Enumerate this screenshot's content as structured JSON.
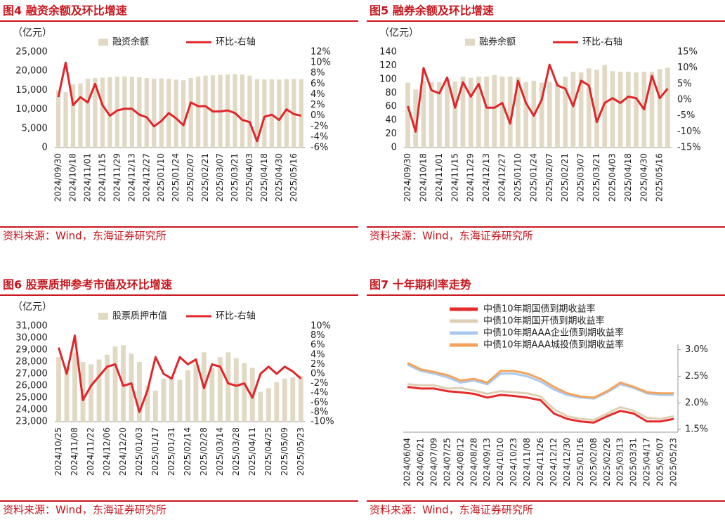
{
  "chart_data": [
    {
      "type": "bar_line",
      "title": "图4  融资余额及环比增速",
      "y_label": "（亿元）",
      "source": "资料来源：Wind，东海证券研究所",
      "categories": [
        "2024/09/30",
        null,
        "2024/10/18",
        null,
        "2024/11/01",
        null,
        "2024/11/15",
        null,
        "2024/11/29",
        null,
        "2024/12/13",
        null,
        "2024/12/27",
        null,
        "2025/01/10",
        null,
        "2025/01/24",
        null,
        "2025/02/07",
        null,
        "2025/02/21",
        null,
        "2025/03/07",
        null,
        "2025/03/21",
        null,
        "2025/04/03",
        null,
        "2025/04/18",
        null,
        "2025/04/30",
        null,
        "2025/05/16",
        null
      ],
      "series": [
        {
          "name": "融资余额",
          "type": "bar",
          "color": "#e2d9c4",
          "values": [
            15000,
            14500,
            16500,
            16800,
            18000,
            18200,
            18300,
            18400,
            18500,
            18600,
            18500,
            18400,
            18200,
            18000,
            18100,
            18000,
            17800,
            17600,
            18200,
            18600,
            18800,
            18900,
            19000,
            19100,
            19200,
            19100,
            18800,
            17900,
            17800,
            17900,
            17800,
            17900,
            17900,
            17900
          ]
        },
        {
          "name": "环比-右轴",
          "type": "line",
          "axis": "y2",
          "color": "#e0262a",
          "values": [
            3.5,
            10,
            2,
            3.5,
            2.5,
            6,
            2,
            0,
            1,
            1.3,
            1.3,
            0.2,
            -0.3,
            -2,
            -1,
            0.5,
            -0.5,
            -1.8,
            2.5,
            1.8,
            1.8,
            0.8,
            0.8,
            1,
            0.5,
            -0.8,
            -1.2,
            -4.8,
            -0.2,
            0.2,
            -0.8,
            1.2,
            0.3,
            0
          ]
        }
      ],
      "ylim": [
        0,
        25000
      ],
      "yticks": [
        0,
        {
          "value": 5000,
          "label": "5,000"
        },
        {
          "value": 10000,
          "label": "10,000"
        },
        {
          "value": 15000,
          "label": "15,000"
        },
        {
          "value": 20000,
          "label": "20,000"
        },
        {
          "value": 25000,
          "label": "25,000"
        }
      ],
      "y2lim": [
        -6,
        12
      ],
      "y2ticks": [
        {
          "value": -6,
          "label": "-6%"
        },
        {
          "value": -4,
          "label": "-4%"
        },
        {
          "value": -2,
          "label": "-2%"
        },
        {
          "value": 0,
          "label": "0%"
        },
        {
          "value": 2,
          "label": "2%"
        },
        {
          "value": 4,
          "label": "4%"
        },
        {
          "value": 6,
          "label": "6%"
        },
        {
          "value": 8,
          "label": "8%"
        },
        {
          "value": 10,
          "label": "10%"
        },
        {
          "value": 12,
          "label": "12%"
        }
      ]
    },
    {
      "type": "bar_line",
      "title": "图5  融券余额及环比增速",
      "y_label": "（亿元）",
      "source": "资料来源：Wind，东海证券研究所",
      "categories": [
        "2024/09/30",
        null,
        "2024/10/18",
        null,
        "2024/11/01",
        null,
        "2024/11/15",
        null,
        "2024/11/29",
        null,
        "2024/12/13",
        null,
        "2024/12/27",
        null,
        "2025/01/10",
        null,
        "2025/01/24",
        null,
        "2025/02/07",
        null,
        "2025/02/21",
        null,
        "2025/03/07",
        null,
        "2025/03/21",
        null,
        "2025/04/03",
        null,
        "2025/04/18",
        null,
        "2025/04/30",
        null,
        "2025/05/16",
        null
      ],
      "series": [
        {
          "name": "融券余额",
          "type": "bar",
          "color": "#e2d9c4",
          "values": [
            95,
            85,
            98,
            96,
            96,
            100,
            97,
            104,
            102,
            104,
            104,
            106,
            104,
            104,
            103,
            96,
            98,
            95,
            96,
            95,
            104,
            111,
            110,
            116,
            114,
            121,
            112,
            111,
            111,
            110,
            111,
            111,
            115,
            117
          ]
        },
        {
          "name": "环比-右轴",
          "type": "line",
          "axis": "y2",
          "color": "#e0262a",
          "values": [
            -2,
            -10,
            10,
            3,
            2,
            7,
            -2.5,
            5.5,
            1,
            5,
            -2.5,
            -2.5,
            -1,
            -7.5,
            6,
            -1,
            -5,
            0,
            11,
            4.5,
            3.5,
            -2,
            6,
            4.5,
            -7,
            -1,
            0.5,
            -1,
            1,
            0.5,
            -3,
            7.5,
            0.5,
            3.5
          ]
        }
      ],
      "ylim": [
        0,
        140
      ],
      "yticks": [
        0,
        20,
        40,
        60,
        80,
        100,
        120,
        140
      ],
      "y2lim": [
        -15,
        15
      ],
      "y2ticks": [
        {
          "value": -15,
          "label": "-15%"
        },
        {
          "value": -10,
          "label": "-10%"
        },
        {
          "value": -5,
          "label": "-5%"
        },
        {
          "value": 0,
          "label": "0%"
        },
        {
          "value": 5,
          "label": "5%"
        },
        {
          "value": 10,
          "label": "10%"
        },
        {
          "value": 15,
          "label": "15%"
        }
      ]
    },
    {
      "type": "bar_line",
      "title": "图6  股票质押参考市值及环比增速",
      "y_label": "（亿元）",
      "source": "资料来源：Wind，东海证券研究所",
      "categories": [
        "2024/10/25",
        null,
        "2024/11/08",
        null,
        "2024/11/22",
        null,
        "2024/12/06",
        null,
        "2024/12/20",
        null,
        "2025/01/03",
        null,
        "2025/01/17",
        null,
        "2025/01/31",
        null,
        "2025/02/14",
        null,
        "2025/02/28",
        null,
        "2025/03/14",
        null,
        "2025/03/28",
        null,
        "2025/04/11",
        null,
        "2025/04/25",
        null,
        "2025/05/09",
        null,
        "2025/05/23"
      ],
      "series": [
        {
          "name": "股票质押市值",
          "type": "bar",
          "color": "#e2d9c4",
          "values": [
            28400,
            27600,
            28800,
            28000,
            27800,
            28200,
            28600,
            29300,
            29400,
            28700,
            28000,
            26000,
            25600,
            26600,
            26600,
            26500,
            27300,
            27800,
            28800,
            27500,
            28400,
            28800,
            28300,
            27900,
            27500,
            25500,
            25800,
            26300,
            26600,
            26700,
            26800
          ]
        },
        {
          "name": "环比-右轴",
          "type": "line",
          "axis": "y2",
          "color": "#e0262a",
          "values": [
            5.5,
            0,
            8,
            -5.5,
            -2.5,
            -0.5,
            1.5,
            2,
            -2.5,
            -2,
            -8,
            -3.5,
            3.5,
            0,
            -1,
            3.5,
            2,
            3,
            -3,
            2,
            1.5,
            -2,
            -2.5,
            -2,
            -5,
            0,
            1.5,
            0,
            1.5,
            0.5,
            -1
          ]
        }
      ],
      "ylim": [
        23000,
        31000
      ],
      "yticks": [
        {
          "value": 23000,
          "label": "23,000"
        },
        {
          "value": 24000,
          "label": "24,000"
        },
        {
          "value": 25000,
          "label": "25,000"
        },
        {
          "value": 26000,
          "label": "26,000"
        },
        {
          "value": 27000,
          "label": "27,000"
        },
        {
          "value": 28000,
          "label": "28,000"
        },
        {
          "value": 29000,
          "label": "29,000"
        },
        {
          "value": 30000,
          "label": "30,000"
        },
        {
          "value": 31000,
          "label": "31,000"
        }
      ],
      "y2lim": [
        -10,
        10
      ],
      "y2ticks": [
        {
          "value": -10,
          "label": "-10%"
        },
        {
          "value": -8,
          "label": "-8%"
        },
        {
          "value": -6,
          "label": "-6%"
        },
        {
          "value": -4,
          "label": "-4%"
        },
        {
          "value": -2,
          "label": "-2%"
        },
        {
          "value": 0,
          "label": "0%"
        },
        {
          "value": 2,
          "label": "2%"
        },
        {
          "value": 4,
          "label": "4%"
        },
        {
          "value": 6,
          "label": "6%"
        },
        {
          "value": 8,
          "label": "8%"
        },
        {
          "value": 10,
          "label": "10%"
        }
      ]
    },
    {
      "type": "line",
      "title": "图7  十年期利率走势",
      "source": "资料来源：Wind，东海证券研究所",
      "categories": [
        "2024/06/04",
        "2024/06/21",
        "2024/07/09",
        "2024/07/25",
        "2024/08/12",
        "2024/08/28",
        "2024/09/13",
        "2024/10/10",
        "2024/10/23",
        "2024/11/08",
        "2024/11/26",
        "2024/12/12",
        "2024/12/30",
        "2025/01/16",
        "2025/02/08",
        "2025/02/26",
        "2025/03/13",
        "2025/03/31",
        "2025/04/17",
        "2025/05/07",
        "2025/05/23"
      ],
      "series": [
        {
          "name": "中债10年期国债到期收益率",
          "color": "#e52a2a",
          "values": [
            2.3,
            2.27,
            2.27,
            2.22,
            2.2,
            2.17,
            2.1,
            2.15,
            2.13,
            2.1,
            2.05,
            1.8,
            1.7,
            1.65,
            1.63,
            1.75,
            1.85,
            1.8,
            1.65,
            1.65,
            1.7
          ]
        },
        {
          "name": "中债10年期国开债到期收益率",
          "color": "#ddd0b4",
          "values": [
            2.35,
            2.33,
            2.33,
            2.27,
            2.28,
            2.23,
            2.17,
            2.22,
            2.2,
            2.18,
            2.12,
            1.88,
            1.75,
            1.7,
            1.68,
            1.8,
            1.92,
            1.85,
            1.72,
            1.7,
            1.75
          ]
        },
        {
          "name": "中债10年期AAA企业债到期收益率",
          "color": "#a9c9f0",
          "values": [
            2.72,
            2.6,
            2.55,
            2.48,
            2.38,
            2.42,
            2.35,
            2.55,
            2.55,
            2.5,
            2.4,
            2.25,
            2.15,
            2.1,
            2.08,
            2.2,
            2.35,
            2.28,
            2.18,
            2.15,
            2.15
          ]
        },
        {
          "name": "中债10年期AAA城投债到期收益率",
          "color": "#f5a35c",
          "values": [
            2.75,
            2.63,
            2.58,
            2.52,
            2.42,
            2.45,
            2.38,
            2.6,
            2.6,
            2.55,
            2.45,
            2.3,
            2.18,
            2.12,
            2.1,
            2.22,
            2.38,
            2.3,
            2.2,
            2.18,
            2.18
          ]
        }
      ],
      "ylim": [
        1.45,
        3.1
      ],
      "yticks": [
        {
          "value": 1.5,
          "label": "1.5%"
        },
        {
          "value": 2.0,
          "label": "2.0%"
        },
        {
          "value": 2.5,
          "label": "2.5%"
        },
        {
          "value": 3.0,
          "label": "3.0%"
        }
      ],
      "y_axis_side": "right"
    }
  ]
}
